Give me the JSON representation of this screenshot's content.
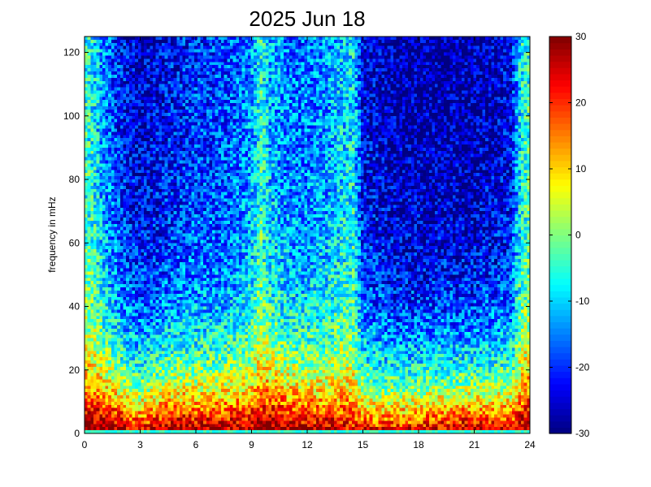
{
  "chart_data": {
    "type": "heatmap",
    "title": "2025 Jun 18",
    "xlabel": "",
    "ylabel": "frequency in mHz",
    "xlim": [
      0,
      24
    ],
    "ylim": [
      0,
      125
    ],
    "x_ticks": [
      0,
      3,
      6,
      9,
      12,
      15,
      18,
      21,
      24
    ],
    "y_ticks": [
      0,
      20,
      40,
      60,
      80,
      100,
      120
    ],
    "colorbar": {
      "range": [
        -30,
        30
      ],
      "ticks": [
        -30,
        -20,
        -10,
        0,
        10,
        20,
        30
      ],
      "colormap": "jet"
    },
    "grid": false,
    "cells": {
      "x_bins": 150,
      "y_bins": 125,
      "description_note": ""
    },
    "profile": {
      "hours": [
        0,
        0.5,
        1,
        2,
        3,
        4,
        5,
        6,
        7,
        8,
        9,
        9.5,
        10,
        11,
        12,
        13,
        14,
        14.5,
        15,
        16,
        17,
        18,
        19,
        20,
        21,
        22,
        23,
        23.5,
        24
      ],
      "floor_level_at_2mhz": [
        28,
        30,
        30,
        26,
        20,
        25,
        28,
        26,
        26,
        26,
        27,
        29,
        30,
        28,
        26,
        25,
        24,
        22,
        20,
        20,
        20,
        22,
        23,
        24,
        25,
        24,
        22,
        26,
        28
      ],
      "high_freq_level": [
        -5,
        -8,
        -14,
        -22,
        -26,
        -24,
        -22,
        -20,
        -20,
        -18,
        -14,
        -6,
        -12,
        -16,
        -16,
        -14,
        -10,
        -8,
        -24,
        -26,
        -28,
        -28,
        -28,
        -28,
        -28,
        -26,
        -24,
        -8,
        -5
      ]
    }
  }
}
